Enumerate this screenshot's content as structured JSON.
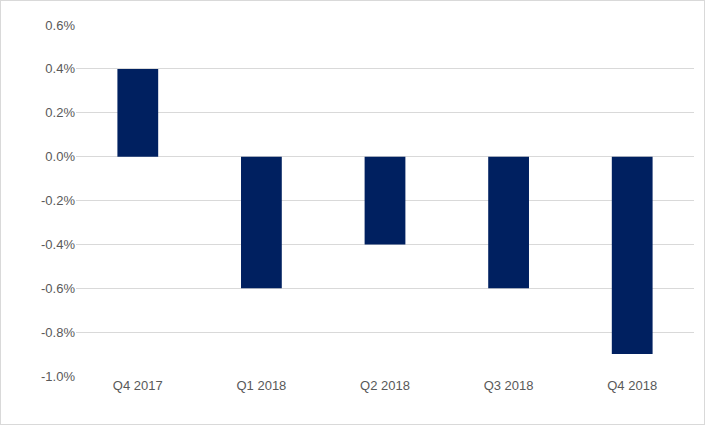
{
  "chart_data": {
    "type": "bar",
    "categories": [
      "Q4 2017",
      "Q1 2018",
      "Q2 2018",
      "Q3 2018",
      "Q4 2018"
    ],
    "values": [
      0.4,
      -0.6,
      -0.4,
      -0.6,
      -0.9
    ],
    "color": "#002060",
    "ylim": [
      -1.0,
      0.6
    ],
    "yticks": [
      {
        "value": 0.6,
        "label": "0.6%"
      },
      {
        "value": 0.4,
        "label": "0.4%"
      },
      {
        "value": 0.2,
        "label": "0.2%"
      },
      {
        "value": 0.0,
        "label": "0.0%"
      },
      {
        "value": -0.2,
        "label": "-0.2%"
      },
      {
        "value": -0.4,
        "label": "-0.4%"
      },
      {
        "value": -0.6,
        "label": "-0.6%"
      },
      {
        "value": -0.8,
        "label": "-0.8%"
      },
      {
        "value": -1.0,
        "label": "-1.0%"
      }
    ],
    "grid": true
  }
}
